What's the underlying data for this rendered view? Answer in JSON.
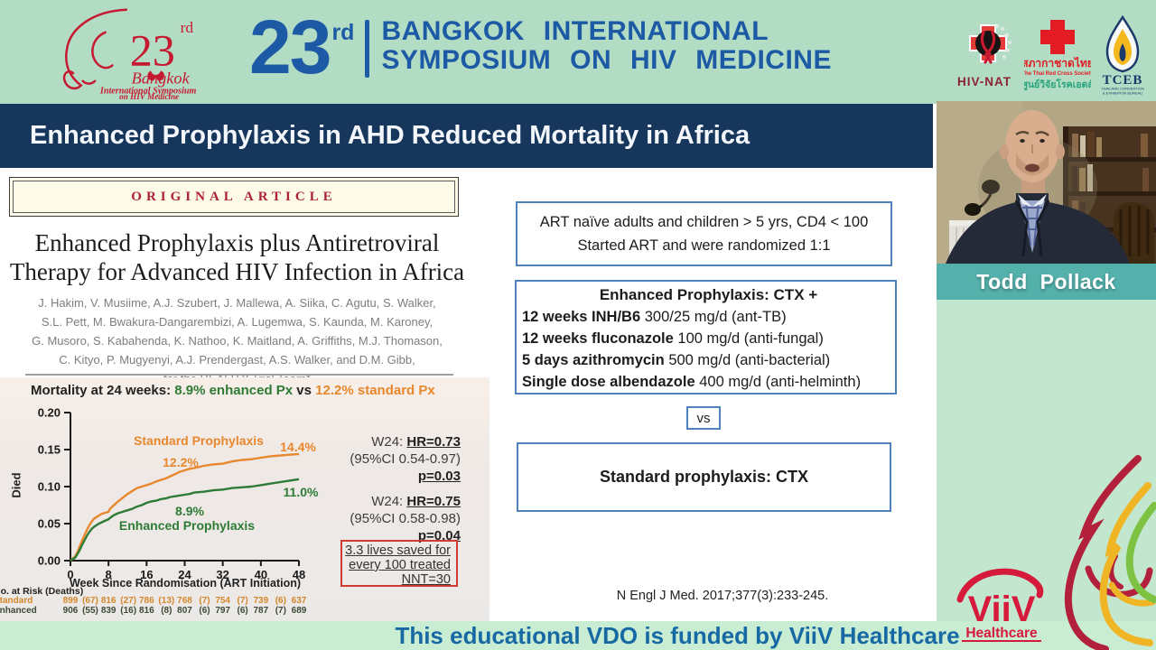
{
  "header": {
    "number": "23",
    "number_suffix": "rd",
    "title_line1": "BANGKOK INTERNATIONAL",
    "title_line2": "SYMPOSIUM ON HIV MEDICINE",
    "logo": {
      "number": "23",
      "number_suffix": "rd",
      "city": "Bangkok",
      "line1": "International Symposium",
      "line2": "on HIV Medicine"
    },
    "partners": {
      "hivnat": "HIV-NAT",
      "trc_thai": "สภากาชาดไทย",
      "trc_english": "The Thai Red Cross Society",
      "trc_thai2": "ศูนย์วิจัยโรคเอดส์",
      "tceb": "TCEB",
      "tceb_sub1": "THAILAND CONVENTION",
      "tceb_sub2": "& EXHIBITION BUREAU"
    }
  },
  "slide": {
    "title": "Enhanced Prophylaxis in AHD Reduced Mortality in Africa",
    "article": {
      "banner": "ORIGINAL ARTICLE",
      "title_line1": "Enhanced Prophylaxis plus Antiretroviral",
      "title_line2": "Therapy for Advanced HIV Infection in Africa",
      "authors": [
        "J. Hakim, V. Musiime, A.J. Szubert, J. Mallewa, A. Siika, C. Agutu, S. Walker,",
        "S.L. Pett, M. Bwakura-Dangarembizi, A. Lugemwa, S. Kaunda, M. Karoney,",
        "G. Musoro, S. Kabahenda, K. Nathoo, K. Maitland, A. Griffiths, M.J. Thomason,",
        "C. Kityo, P. Mugyenyi, A.J. Prendergast, A.S. Walker, and D.M. Gibb,",
        "for the REALITY Trial Team*"
      ]
    },
    "study": {
      "box1_line1": "ART naïve adults and children > 5 yrs, CD4 < 100",
      "box1_line2": "Started ART and were randomized 1:1",
      "box2_title": "Enhanced Prophylaxis: CTX +",
      "box2_items": [
        {
          "bold": "12 weeks INH/B6",
          "rest": " 300/25 mg/d (ant-TB)"
        },
        {
          "bold": "12 weeks fluconazole",
          "rest": " 100 mg/d (anti-fungal)"
        },
        {
          "bold": "5 days azithromycin",
          "rest": " 500 mg/d (anti-bacterial)"
        },
        {
          "bold": "Single dose albendazole",
          "rest": " 400 mg/d (anti-helminth)"
        }
      ],
      "vs": "vs",
      "box3": "Standard prophylaxis: CTX",
      "citation": "N Engl J Med. 2017;377(3):233-245."
    }
  },
  "chart_data": {
    "type": "line",
    "title_parts": {
      "prefix": "Mortality at 24 weeks: ",
      "enhanced": "8.9% enhanced Px",
      "mid": " vs ",
      "standard": "12.2% standard Px"
    },
    "xlabel": "Week Since Randomisation (ART Initiation)",
    "ylabel": "Died",
    "xlim": [
      0,
      48
    ],
    "ylim": [
      0,
      0.2
    ],
    "xticks": [
      0,
      8,
      16,
      24,
      32,
      40,
      48
    ],
    "yticks": [
      "0.00",
      "0.05",
      "0.10",
      "0.15",
      "0.20"
    ],
    "series": [
      {
        "name": "Standard Prophylaxis",
        "color": "#e8872c",
        "w24": "12.2%",
        "w48": "14.4%",
        "points": [
          [
            0,
            0
          ],
          [
            1,
            0.006
          ],
          [
            1.5,
            0.012
          ],
          [
            2,
            0.02
          ],
          [
            2.5,
            0.028
          ],
          [
            3,
            0.035
          ],
          [
            3.5,
            0.042
          ],
          [
            4,
            0.048
          ],
          [
            4.5,
            0.053
          ],
          [
            5,
            0.057
          ],
          [
            6,
            0.061
          ],
          [
            6.5,
            0.063
          ],
          [
            7,
            0.064
          ],
          [
            8,
            0.066
          ],
          [
            8.3,
            0.07
          ],
          [
            9,
            0.074
          ],
          [
            10,
            0.08
          ],
          [
            11,
            0.085
          ],
          [
            12,
            0.09
          ],
          [
            13,
            0.094
          ],
          [
            14,
            0.098
          ],
          [
            15,
            0.1
          ],
          [
            16,
            0.102
          ],
          [
            17,
            0.104
          ],
          [
            18,
            0.107
          ],
          [
            19,
            0.109
          ],
          [
            20,
            0.111
          ],
          [
            21,
            0.114
          ],
          [
            22,
            0.117
          ],
          [
            23,
            0.12
          ],
          [
            24,
            0.122
          ],
          [
            25,
            0.124
          ],
          [
            26,
            0.125
          ],
          [
            28,
            0.128
          ],
          [
            30,
            0.13
          ],
          [
            32,
            0.131
          ],
          [
            34,
            0.134
          ],
          [
            36,
            0.136
          ],
          [
            38,
            0.137
          ],
          [
            40,
            0.139
          ],
          [
            42,
            0.141
          ],
          [
            44,
            0.142
          ],
          [
            46,
            0.143
          ],
          [
            48,
            0.144
          ]
        ]
      },
      {
        "name": "Enhanced Prophylaxis",
        "color": "#2e7b36",
        "w24": "8.9%",
        "w48": "11.0%",
        "points": [
          [
            0,
            0
          ],
          [
            1,
            0.004
          ],
          [
            1.5,
            0.009
          ],
          [
            2,
            0.015
          ],
          [
            2.5,
            0.022
          ],
          [
            3,
            0.028
          ],
          [
            3.5,
            0.034
          ],
          [
            4,
            0.039
          ],
          [
            4.5,
            0.043
          ],
          [
            5,
            0.046
          ],
          [
            6,
            0.05
          ],
          [
            7,
            0.053
          ],
          [
            8,
            0.056
          ],
          [
            9,
            0.061
          ],
          [
            10,
            0.064
          ],
          [
            11,
            0.066
          ],
          [
            12,
            0.068
          ],
          [
            13,
            0.07
          ],
          [
            14,
            0.073
          ],
          [
            15,
            0.075
          ],
          [
            16,
            0.078
          ],
          [
            17,
            0.08
          ],
          [
            18,
            0.081
          ],
          [
            19,
            0.083
          ],
          [
            20,
            0.084
          ],
          [
            21,
            0.086
          ],
          [
            22,
            0.087
          ],
          [
            23,
            0.088
          ],
          [
            24,
            0.089
          ],
          [
            25,
            0.09
          ],
          [
            26,
            0.092
          ],
          [
            28,
            0.093
          ],
          [
            30,
            0.095
          ],
          [
            32,
            0.096
          ],
          [
            34,
            0.098
          ],
          [
            36,
            0.099
          ],
          [
            38,
            0.1
          ],
          [
            40,
            0.102
          ],
          [
            42,
            0.104
          ],
          [
            44,
            0.106
          ],
          [
            46,
            0.108
          ],
          [
            48,
            0.11
          ]
        ]
      }
    ],
    "annotations": {
      "block1": {
        "prefix": "W24: ",
        "hr": "HR=0.73",
        "ci": "(95%CI 0.54-0.97)",
        "p": "p=0.03"
      },
      "block2": {
        "prefix": "W24: ",
        "hr": "HR=0.75",
        "ci": "(95%CI 0.58-0.98)",
        "p": "p=0.04"
      },
      "nnt": [
        "3.3 lives saved for",
        "every 100 treated",
        "NNT=30"
      ]
    },
    "risk_table": {
      "label": "No. at Risk (Deaths)",
      "rows": [
        {
          "name": "Standard",
          "color": "#d4872b",
          "values": [
            "899",
            "(67)",
            "816",
            "(27)",
            "786",
            "(13)",
            "768",
            "(7)",
            "754",
            "(7)",
            "739",
            "(6)",
            "637"
          ]
        },
        {
          "name": "Enhanced",
          "color": "#3d4a35",
          "values": [
            "906",
            "(55)",
            "839",
            "(16)",
            "816",
            "(8)",
            "807",
            "(6)",
            "797",
            "(6)",
            "787",
            "(7)",
            "689"
          ]
        }
      ]
    }
  },
  "video": {
    "speaker": "Todd Pollack"
  },
  "footer": {
    "text": "This educational VDO is funded by ViiV Healthcare"
  },
  "viiv": {
    "name": "ViiV",
    "sub": "Healthcare"
  },
  "colors": {
    "header_bg": "#b2dcc4",
    "header_blue": "#1d5aa5",
    "brand_red": "#c61932",
    "navy_bar": "#17365c",
    "box_border": "#4f81bd",
    "orange": "#e8872c",
    "green": "#2e7b36",
    "teal_band": "#54b0ab",
    "mint_panel": "#c3e7ce",
    "footer_bg": "#c9edd3",
    "footer_text": "#1769a4",
    "viiv_red": "#d61a3c",
    "nnt_border": "#cf3a32"
  }
}
